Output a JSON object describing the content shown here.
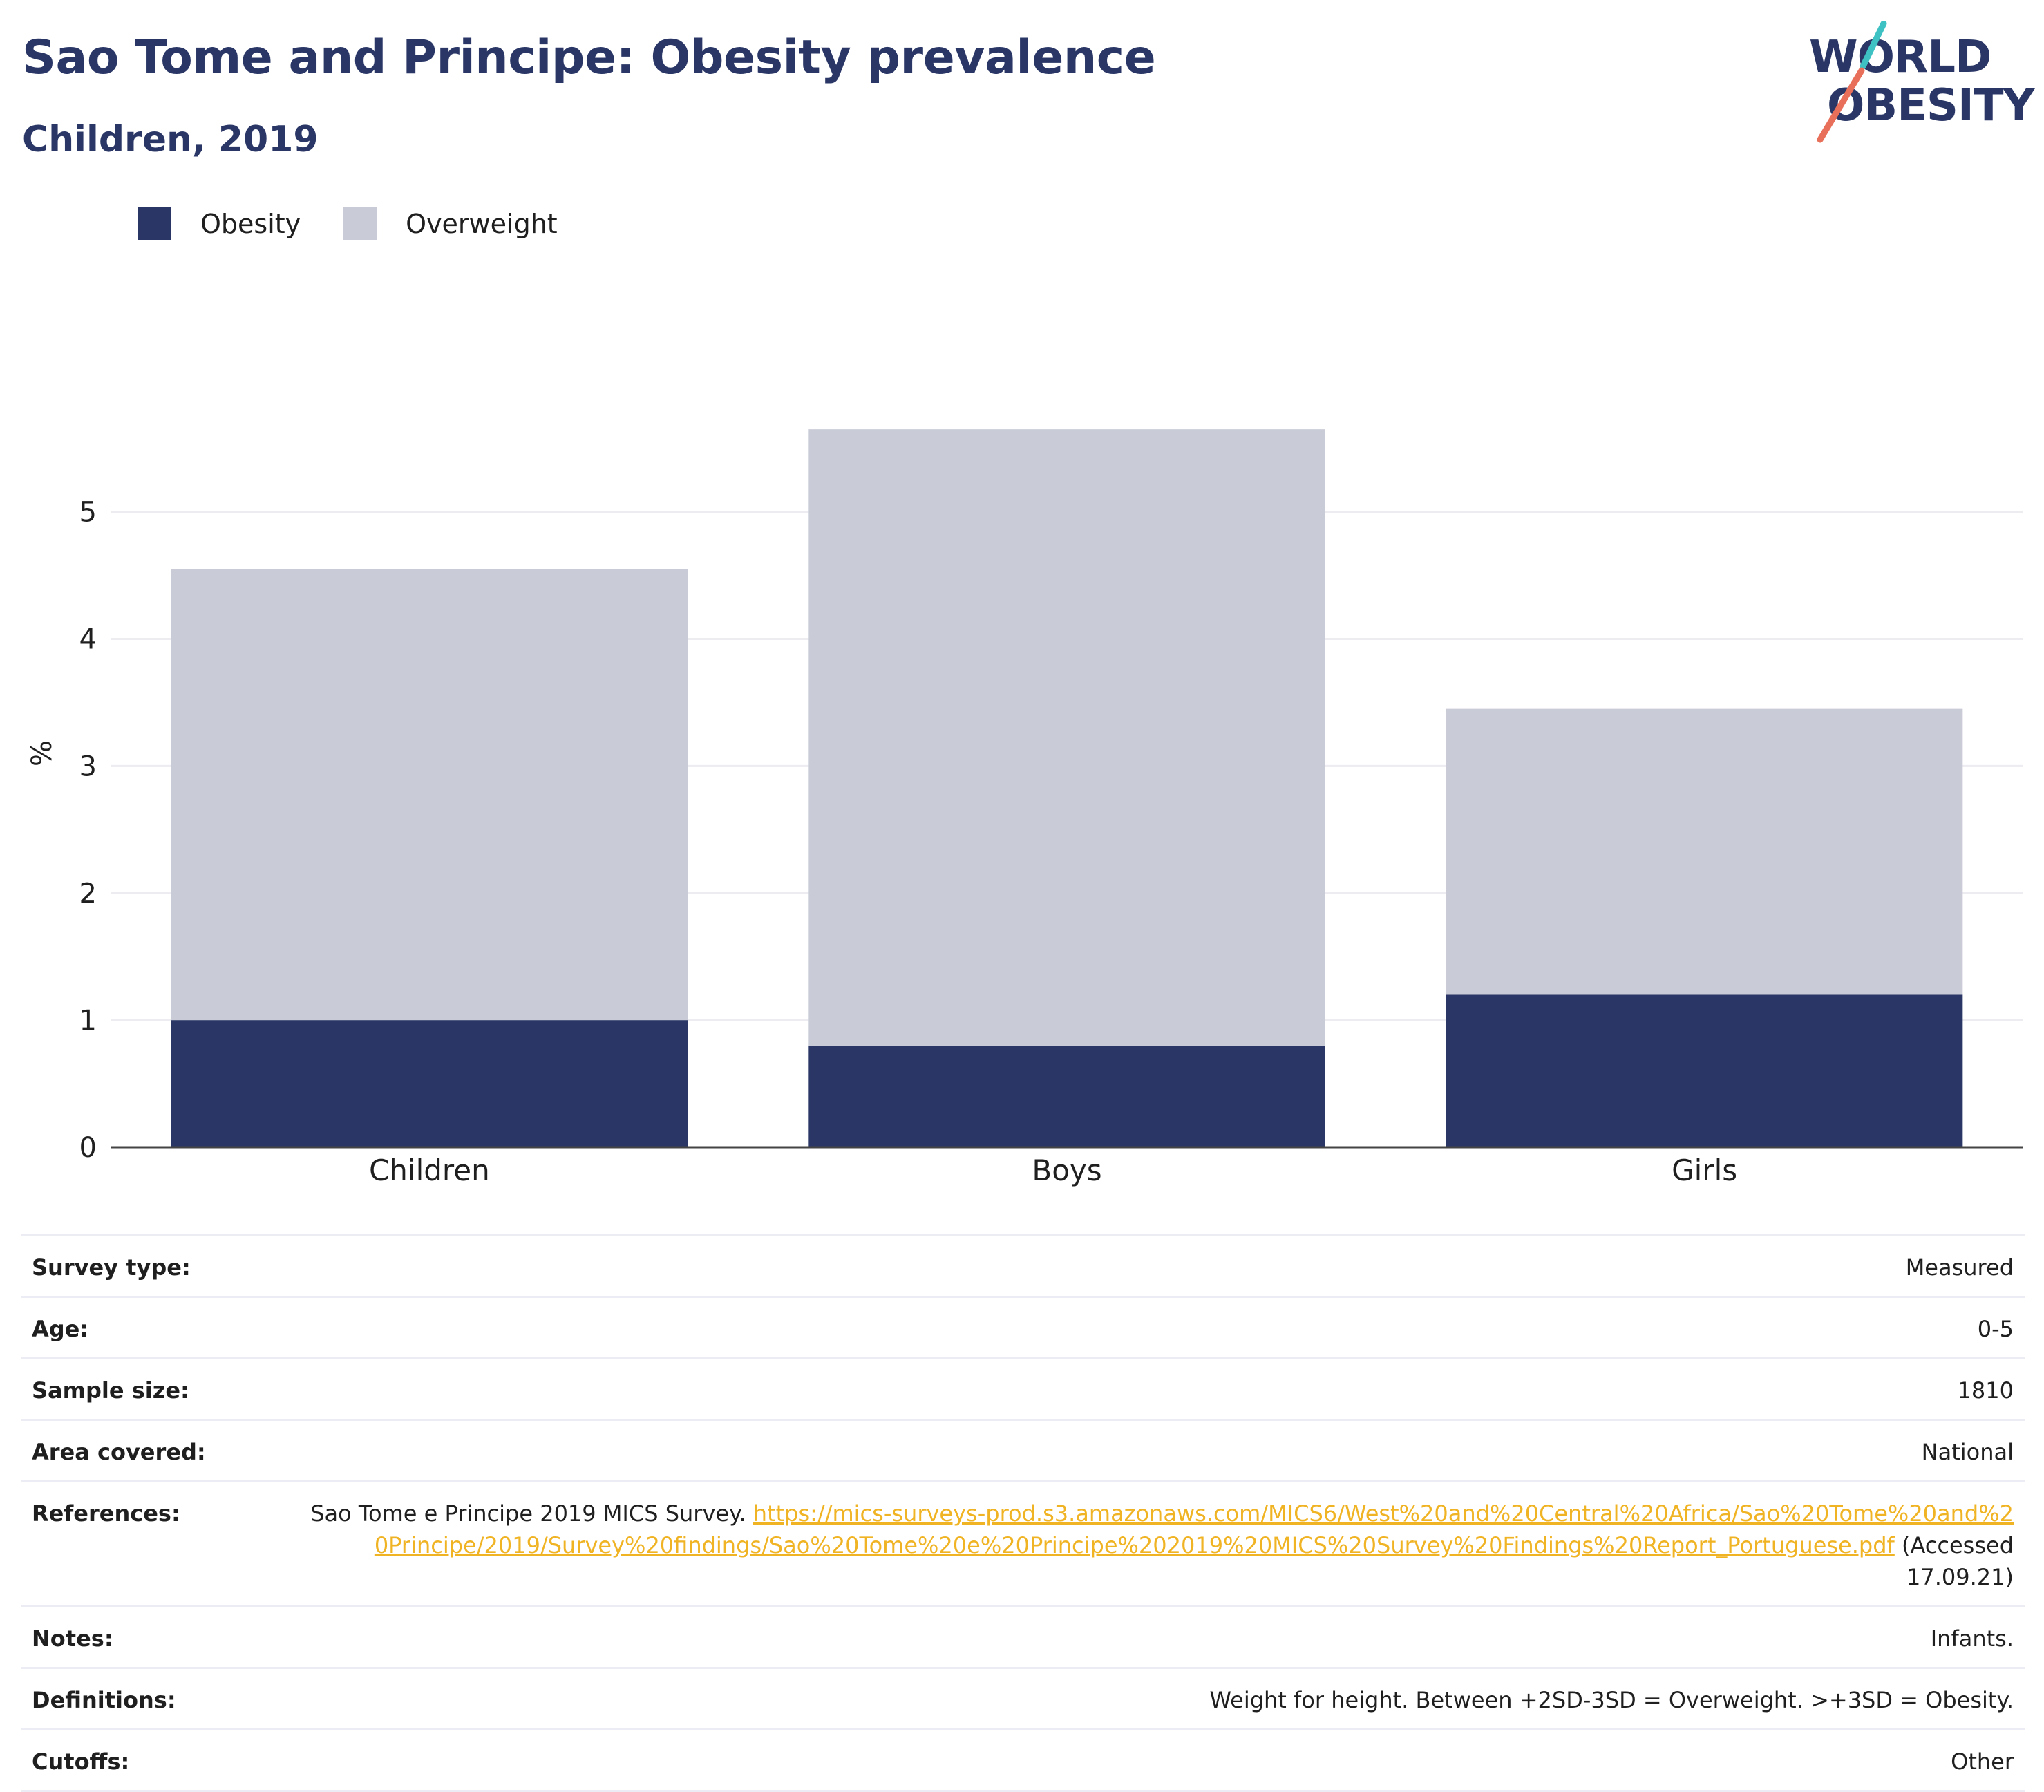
{
  "title": "Sao Tome and Principe: Obesity prevalence",
  "subtitle": "Children, 2019",
  "logo": {
    "line1": "WORLD",
    "line2": "OBESITY",
    "colors": {
      "navy": "#2a3766",
      "teal": "#3ec1c3",
      "coral": "#e8705a"
    }
  },
  "legend": [
    {
      "label": "Obesity",
      "color": "#2a3766"
    },
    {
      "label": "Overweight",
      "color": "#c9cbd7"
    }
  ],
  "chart_data": {
    "type": "bar",
    "stacked": true,
    "categories": [
      "Children",
      "Boys",
      "Girls"
    ],
    "series": [
      {
        "name": "Obesity",
        "color": "#2a3766",
        "values": [
          1.0,
          0.8,
          1.2
        ]
      },
      {
        "name": "Overweight",
        "color": "#c9cbd7",
        "values": [
          3.55,
          4.85,
          2.25
        ]
      }
    ],
    "ylabel": "%",
    "xlabel": "",
    "yticks": [
      0,
      1,
      2,
      3,
      4,
      5
    ],
    "ylim": [
      0,
      6.2
    ],
    "grid": true,
    "legend_position": "top-left"
  },
  "meta": [
    {
      "key": "Survey type:",
      "value": "Measured"
    },
    {
      "key": "Age:",
      "value": "0-5"
    },
    {
      "key": "Sample size:",
      "value": "1810"
    },
    {
      "key": "Area covered:",
      "value": "National"
    },
    {
      "key": "Notes:",
      "value": "Infants."
    },
    {
      "key": "Definitions:",
      "value": "Weight for height. Between +2SD-3SD = Overweight. >+3SD = Obesity."
    },
    {
      "key": "Cutoffs:",
      "value": "Other"
    }
  ],
  "references": {
    "key": "References:",
    "text": "Sao Tome e Principe 2019 MICS Survey.",
    "link": "https://mics-surveys-prod.s3.amazonaws.com/MICS6/West%20and%20Central%20Africa/Sao%20Tome%20and%20Principe/2019/Survey%20findings/Sao%20Tome%20e%20Principe%202019%20MICS%20Survey%20Findings%20Report_Portuguese.pdf",
    "suffix": "(Accessed 17.09.21)"
  }
}
